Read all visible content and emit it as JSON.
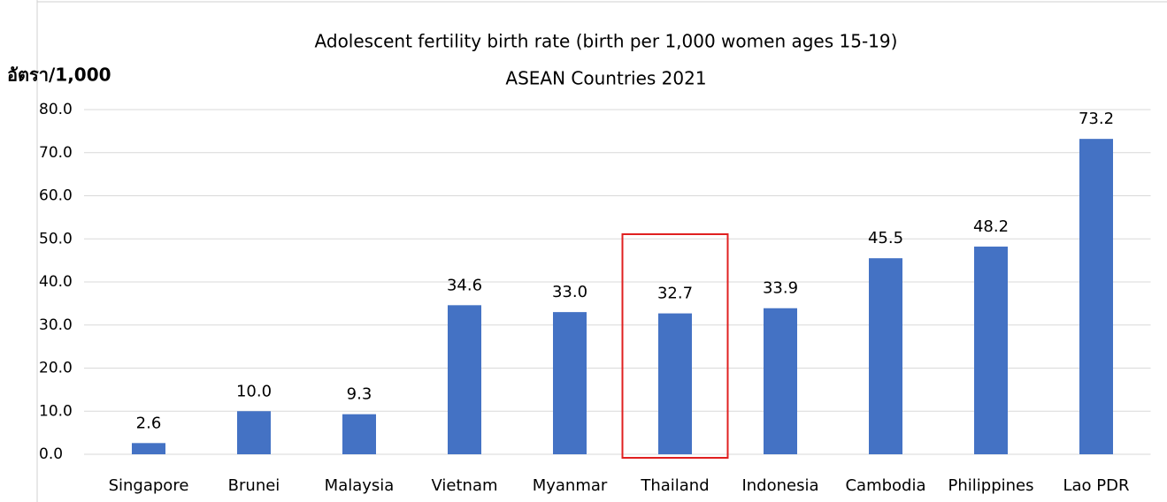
{
  "chart_data": {
    "type": "bar",
    "title": "Adolescent fertility birth rate (birth per 1,000 women ages 15-19)",
    "subtitle": "ASEAN Countries 2021",
    "y_label": "อัตรา/1,000",
    "categories": [
      "Singapore",
      "Brunei",
      "Malaysia",
      "Vietnam",
      "Myanmar",
      "Thailand",
      "Indonesia",
      "Cambodia",
      "Philippines",
      "Lao PDR"
    ],
    "values": [
      2.6,
      10.0,
      9.3,
      34.6,
      33.0,
      32.7,
      33.9,
      45.5,
      48.2,
      73.2
    ],
    "value_labels": [
      "2.6",
      "10.0",
      "9.3",
      "34.6",
      "33.0",
      "32.7",
      "33.9",
      "45.5",
      "48.2",
      "73.2"
    ],
    "color": "#4472c4",
    "highlight": "Thailand",
    "highlight_color": "#e02020",
    "ylim": [
      0,
      80
    ],
    "yticks": [
      {
        "value": 0,
        "label": "0.0"
      },
      {
        "value": 10,
        "label": "10.0"
      },
      {
        "value": 20,
        "label": "20.0"
      },
      {
        "value": 30,
        "label": "30.0"
      },
      {
        "value": 40,
        "label": "40.0"
      },
      {
        "value": 50,
        "label": "50.0"
      },
      {
        "value": 60,
        "label": "60.0"
      },
      {
        "value": 70,
        "label": "70.0"
      },
      {
        "value": 80,
        "label": "80.0"
      }
    ],
    "grid": true
  }
}
